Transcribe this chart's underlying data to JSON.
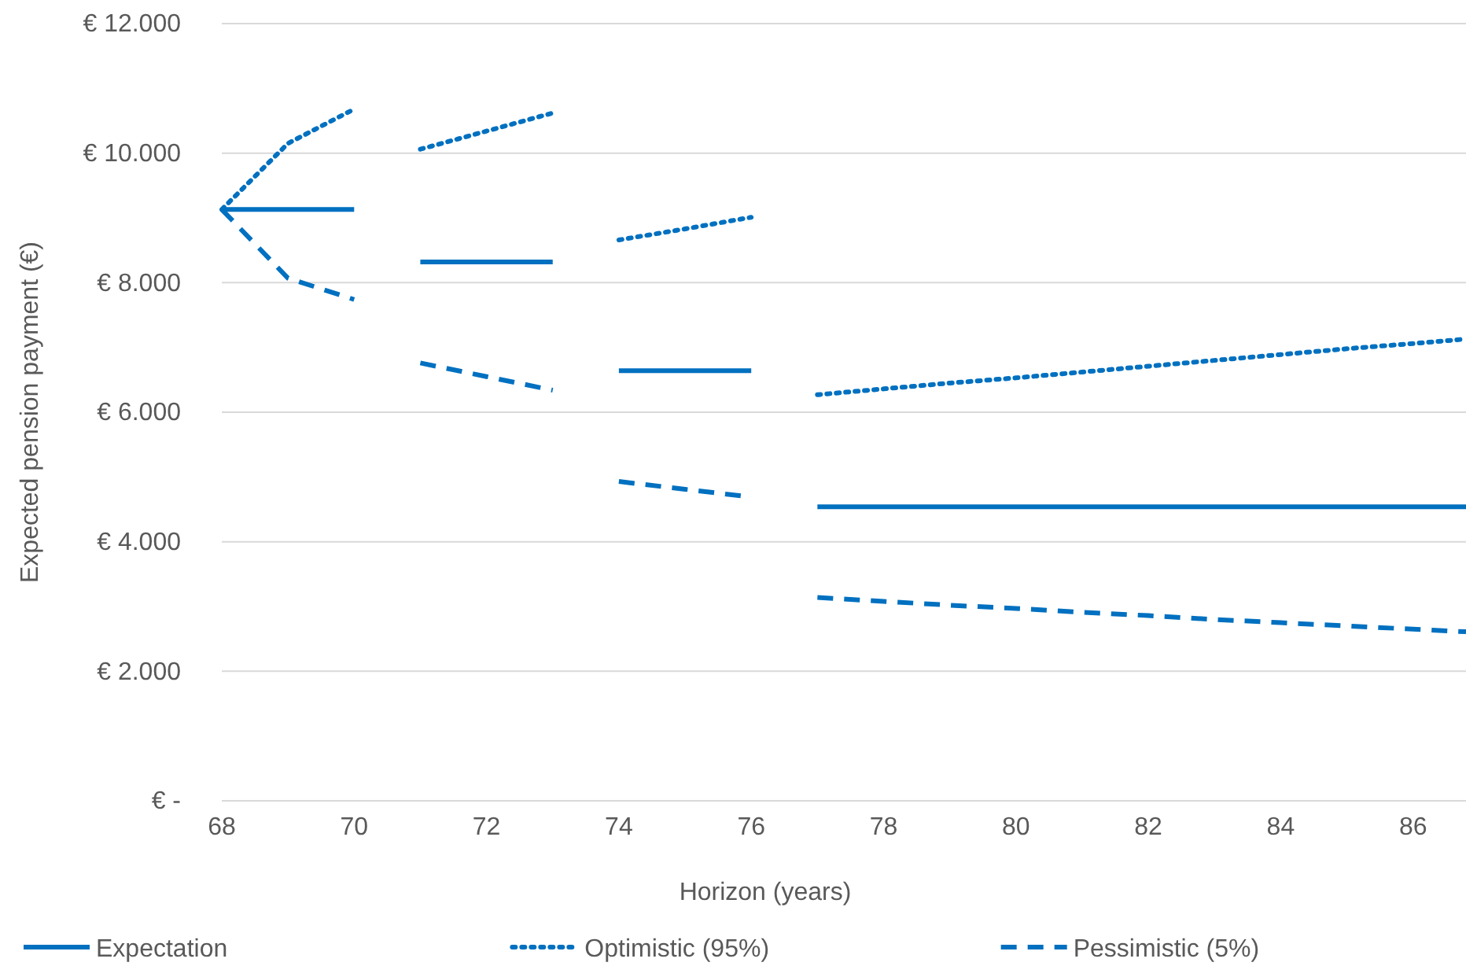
{
  "chart_data": {
    "type": "line",
    "xlabel": "Horizon (years)",
    "ylabel": "Expected pension payment (€)",
    "x": [
      68,
      69,
      70,
      70.5,
      71,
      72,
      73,
      73.5,
      74,
      75,
      76,
      76.5,
      77,
      78,
      79,
      80,
      81,
      82,
      83,
      84,
      85,
      86,
      86.8
    ],
    "series": [
      {
        "name": "Expectation",
        "color": "#0070c0",
        "line_style": "solid",
        "values": [
          9130,
          9130,
          9130,
          null,
          8320,
          8320,
          8320,
          null,
          6640,
          6640,
          6640,
          null,
          4540,
          4540,
          4540,
          4540,
          4540,
          4540,
          4540,
          4540,
          4540,
          4540,
          4540
        ]
      },
      {
        "name": "Optimistic (95%)",
        "color": "#0070c0",
        "line_style": "dotted",
        "values": [
          9130,
          10150,
          10680,
          null,
          10060,
          10340,
          10620,
          null,
          8660,
          8830,
          9010,
          null,
          6270,
          6360,
          6450,
          6530,
          6620,
          6710,
          6800,
          6890,
          6980,
          7060,
          7130
        ]
      },
      {
        "name": "Pessimistic (5%)",
        "color": "#0070c0",
        "line_style": "dashed",
        "values": [
          9130,
          8070,
          7740,
          null,
          6760,
          6550,
          6340,
          null,
          4930,
          4810,
          4690,
          null,
          3140,
          3080,
          3020,
          2970,
          2910,
          2860,
          2800,
          2750,
          2700,
          2650,
          2610
        ]
      }
    ],
    "xlim": [
      68,
      86.8
    ],
    "xticks": [
      68,
      70,
      72,
      74,
      76,
      78,
      80,
      82,
      84,
      86
    ],
    "ylim": [
      0,
      12000
    ],
    "yticks": [
      {
        "value": 0,
        "label": "€ -"
      },
      {
        "value": 2000,
        "label": "€ 2.000"
      },
      {
        "value": 4000,
        "label": "€ 4.000"
      },
      {
        "value": 6000,
        "label": "€ 6.000"
      },
      {
        "value": 8000,
        "label": "€ 8.000"
      },
      {
        "value": 10000,
        "label": "€ 10.000"
      },
      {
        "value": 12000,
        "label": "€ 12.000"
      }
    ],
    "grid": "y",
    "legend": "bottom",
    "marker": "none"
  }
}
